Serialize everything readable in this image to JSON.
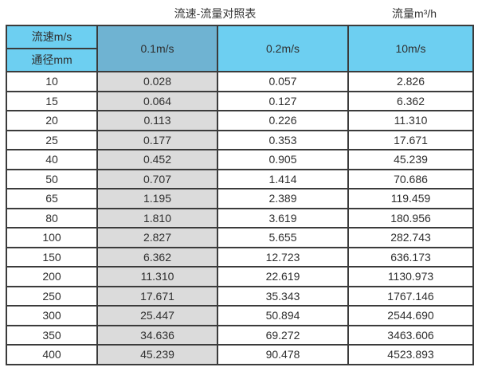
{
  "titles": {
    "main": "流速-流量对照表",
    "right": "流量m³/h"
  },
  "colors": {
    "header_blue": "#6DCFF1",
    "header_blue_dark": "#6FB3D2",
    "grey_column": "#DBDBDB",
    "border": "#3b3b3b"
  },
  "chart_data": {
    "type": "table",
    "title": "流速-流量对照表",
    "flow_unit_header": "流量m³/h",
    "corner": {
      "top": "流速m/s",
      "bottom": "通径mm"
    },
    "velocity_columns": [
      "0.1m/s",
      "0.2m/s",
      "10m/s"
    ],
    "columns": [
      "通径mm",
      "0.1m/s",
      "0.2m/s",
      "10m/s"
    ],
    "rows": [
      {
        "diameter": "10",
        "values": [
          "0.028",
          "0.057",
          "2.826"
        ]
      },
      {
        "diameter": "15",
        "values": [
          "0.064",
          "0.127",
          "6.362"
        ]
      },
      {
        "diameter": "20",
        "values": [
          "0.113",
          "0.226",
          "11.310"
        ]
      },
      {
        "diameter": "25",
        "values": [
          "0.177",
          "0.353",
          "17.671"
        ]
      },
      {
        "diameter": "40",
        "values": [
          "0.452",
          "0.905",
          "45.239"
        ]
      },
      {
        "diameter": "50",
        "values": [
          "0.707",
          "1.414",
          "70.686"
        ]
      },
      {
        "diameter": "65",
        "values": [
          "1.195",
          "2.389",
          "119.459"
        ]
      },
      {
        "diameter": "80",
        "values": [
          "1.810",
          "3.619",
          "180.956"
        ]
      },
      {
        "diameter": "100",
        "values": [
          "2.827",
          "5.655",
          "282.743"
        ]
      },
      {
        "diameter": "150",
        "values": [
          "6.362",
          "12.723",
          "636.173"
        ]
      },
      {
        "diameter": "200",
        "values": [
          "11.310",
          "22.619",
          "1130.973"
        ]
      },
      {
        "diameter": "250",
        "values": [
          "17.671",
          "35.343",
          "1767.146"
        ]
      },
      {
        "diameter": "300",
        "values": [
          "25.447",
          "50.894",
          "2544.690"
        ]
      },
      {
        "diameter": "350",
        "values": [
          "34.636",
          "69.272",
          "3463.606"
        ]
      },
      {
        "diameter": "400",
        "values": [
          "45.239",
          "90.478",
          "4523.893"
        ]
      }
    ]
  }
}
